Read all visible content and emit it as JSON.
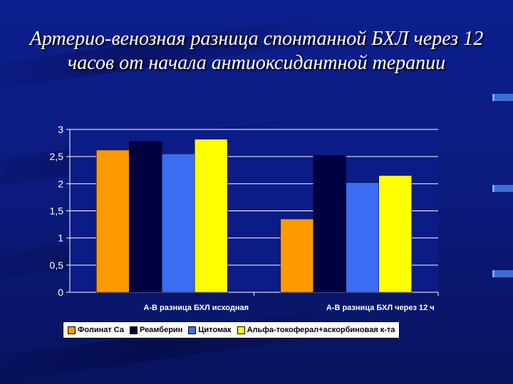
{
  "slide": {
    "title": "Артерио-венозная разница спонтанной БХЛ через 12 часов от начала антиоксидантной терапии"
  },
  "colors": {
    "background": "#0d1f8f",
    "plot_area": "#0c1c86"
  },
  "chart_data": {
    "type": "bar",
    "categories": [
      "А-В разница БХЛ исходная",
      "А-В разница БХЛ через 12 ч"
    ],
    "series": [
      {
        "name": "Фолинат Са",
        "color": "#ff9900",
        "values": [
          2.62,
          1.35
        ]
      },
      {
        "name": "Реамберин",
        "color": "#000040",
        "values": [
          2.78,
          2.52
        ]
      },
      {
        "name": "Цитомак",
        "color": "#3b6cf2",
        "values": [
          2.55,
          2.02
        ]
      },
      {
        "name": "Альфа-токоферал+аскорбиновая к-та",
        "color": "#ffff00",
        "values": [
          2.82,
          2.15
        ]
      }
    ],
    "ylim": [
      0,
      3
    ],
    "yticks": [
      0,
      0.5,
      1,
      1.5,
      2,
      2.5,
      3
    ],
    "ytick_labels": [
      "0",
      "0,5",
      "1",
      "1,5",
      "2",
      "2,5",
      "3"
    ],
    "grid": true,
    "legend_position": "bottom"
  }
}
